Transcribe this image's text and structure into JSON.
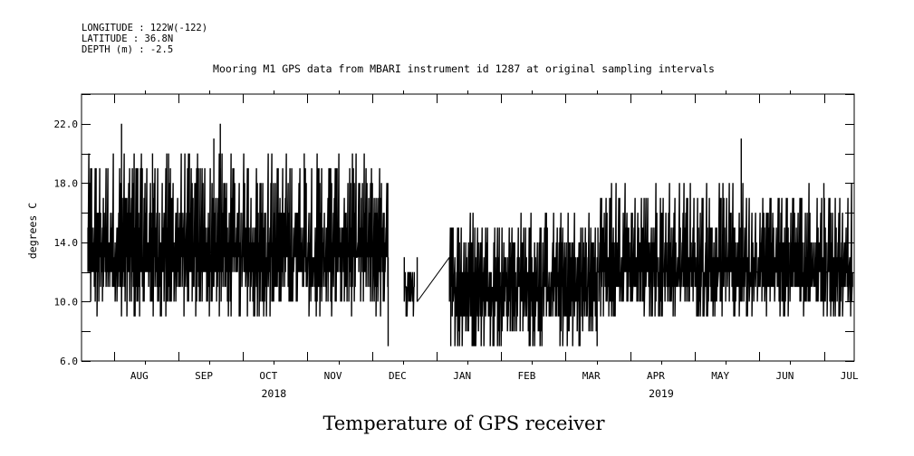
{
  "header": {
    "longitude": "LONGITUDE : 122W(-122)",
    "latitude": "LATITUDE : 36.8N",
    "depth": "DEPTH (m) : -2.5"
  },
  "chart_data": {
    "type": "line",
    "title": "Mooring M1 GPS data from MBARI instrument id 1287 at original sampling intervals",
    "subtitle": "Temperature of GPS receiver",
    "ylabel": "degrees C",
    "xlabel": "",
    "ylim": [
      6.0,
      24.0
    ],
    "yticks": [
      6.0,
      10.0,
      14.0,
      18.0,
      22.0
    ],
    "ytick_labels": [
      "6.0",
      "10.0",
      "14.0",
      "18.0",
      "22.0"
    ],
    "x_unit": "months since 2018-07-15",
    "xlim": [
      0,
      11.97
    ],
    "month_labels": [
      "AUG",
      "SEP",
      "OCT",
      "NOV",
      "DEC",
      "JAN",
      "FEB",
      "MAR",
      "APR",
      "MAY",
      "JUN",
      "JUL"
    ],
    "month_label_positions": [
      0.98,
      1.98,
      2.98,
      3.98,
      4.98,
      5.98,
      6.98,
      7.98,
      8.98,
      9.98,
      10.98,
      11.98
    ],
    "year_labels": [
      {
        "label": "2018",
        "x": 2.98
      },
      {
        "label": "2019",
        "x": 8.98
      }
    ],
    "series": [
      {
        "name": "GPS receiver temperature",
        "segments": [
          {
            "x_start": 0.1,
            "x_end": 4.75,
            "low_min": 9,
            "low_max": 13,
            "high_min": 13,
            "high_max": 20
          },
          {
            "x_start": 5.0,
            "x_end": 5.16,
            "low_min": 9,
            "low_max": 11,
            "high_min": 11,
            "high_max": 13
          },
          {
            "x_start": 5.7,
            "x_end": 8.0,
            "low_min": 7,
            "low_max": 11,
            "high_min": 11,
            "high_max": 16
          },
          {
            "x_start": 8.0,
            "x_end": 11.95,
            "low_min": 9,
            "low_max": 12,
            "high_min": 12,
            "high_max": 18
          }
        ],
        "points": [
          {
            "x": 0.62,
            "y": 22.0
          },
          {
            "x": 1.1,
            "y": 20.0
          },
          {
            "x": 2.05,
            "y": 21.0
          },
          {
            "x": 2.15,
            "y": 22.0
          },
          {
            "x": 3.45,
            "y": 20.0
          },
          {
            "x": 4.75,
            "y": 7.0
          },
          {
            "x": 5.16,
            "y": 13.0
          },
          {
            "x": 5.2,
            "y": 10.0
          },
          {
            "x": 5.7,
            "y": 13.0
          },
          {
            "x": 5.72,
            "y": 7.0
          },
          {
            "x": 10.22,
            "y": 21.0
          },
          {
            "x": 11.5,
            "y": 18.0
          }
        ]
      }
    ],
    "gap": {
      "x_from": 5.2,
      "y_from": 10.0,
      "x_to": 5.7,
      "y_to": 13.0
    }
  }
}
